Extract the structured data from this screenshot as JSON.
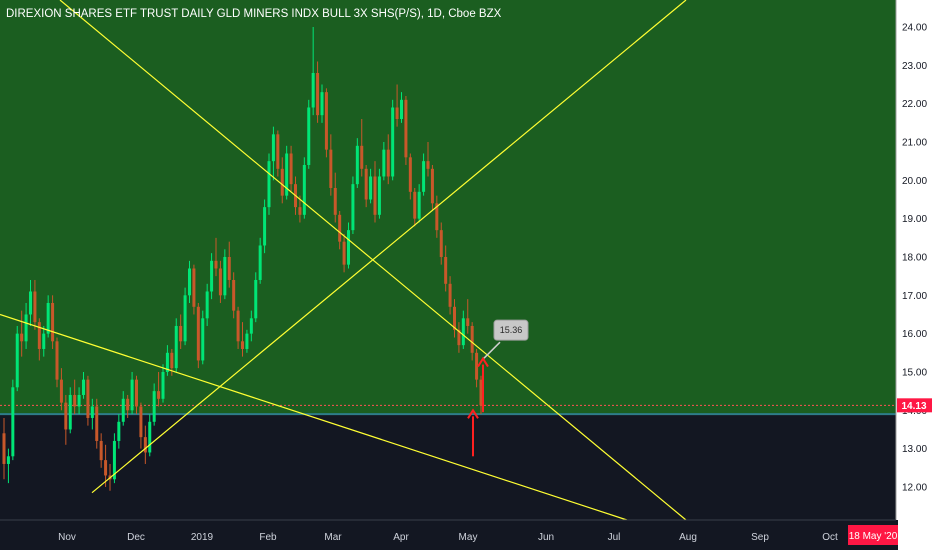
{
  "chart_data": {
    "type": "candlestick",
    "title": "DIREXION SHARES ETF TRUST DAILY GLD MINERS INDX BULL 3X SHS(P/S), 1D, Cboe BZX",
    "xlabel": "",
    "ylabel": "",
    "ylim": [
      11.6,
      24.4
    ],
    "y_ticks": [
      "24.00",
      "23.00",
      "22.00",
      "21.00",
      "20.00",
      "19.00",
      "18.00",
      "17.00",
      "16.00",
      "15.00",
      "14.00",
      "13.00",
      "12.00"
    ],
    "x_ticks": [
      "Nov",
      "Dec",
      "2019",
      "Feb",
      "Mar",
      "Apr",
      "May",
      "Jun",
      "Jul",
      "Aug",
      "Sep",
      "Oct"
    ],
    "last_price_label": "14.13",
    "last_price": 14.13,
    "date_badge": "18 May '20",
    "callout_label": "15.36",
    "callout_value": 15.36,
    "colors": {
      "background_upper": "#1b5e20",
      "background_lower": "#131722",
      "candle_up": "#00e676",
      "candle_down": "#c8582a",
      "trendline": "#ffff33",
      "arrow": "#ff2020",
      "price_badge": "#ff1744",
      "axis_panel": "#ffffff"
    },
    "candles_ohlc": [
      [
        13.4,
        13.8,
        12.2,
        12.6
      ],
      [
        12.6,
        13.0,
        12.1,
        12.8
      ],
      [
        12.8,
        14.8,
        12.7,
        14.6
      ],
      [
        14.6,
        16.2,
        14.5,
        16.0
      ],
      [
        16.0,
        16.6,
        15.4,
        15.8
      ],
      [
        15.8,
        16.8,
        15.6,
        16.5
      ],
      [
        16.5,
        17.4,
        16.2,
        17.1
      ],
      [
        17.1,
        17.4,
        16.1,
        16.3
      ],
      [
        16.3,
        16.4,
        15.3,
        15.6
      ],
      [
        15.6,
        16.2,
        15.4,
        16.0
      ],
      [
        16.0,
        17.0,
        15.9,
        16.8
      ],
      [
        16.8,
        17.0,
        15.6,
        15.8
      ],
      [
        15.8,
        15.9,
        14.6,
        14.8
      ],
      [
        14.8,
        15.1,
        14.0,
        14.2
      ],
      [
        14.2,
        14.4,
        13.1,
        13.5
      ],
      [
        13.5,
        14.6,
        13.4,
        14.4
      ],
      [
        14.4,
        14.8,
        13.9,
        14.1
      ],
      [
        14.1,
        14.6,
        13.9,
        14.4
      ],
      [
        14.4,
        15.0,
        14.3,
        14.8
      ],
      [
        14.8,
        14.9,
        13.6,
        13.8
      ],
      [
        13.8,
        14.3,
        13.5,
        14.1
      ],
      [
        14.1,
        14.3,
        13.0,
        13.2
      ],
      [
        13.2,
        13.4,
        12.5,
        12.7
      ],
      [
        12.7,
        13.1,
        12.0,
        12.3
      ],
      [
        12.3,
        12.6,
        11.9,
        12.2
      ],
      [
        12.2,
        13.4,
        12.1,
        13.2
      ],
      [
        13.2,
        13.9,
        13.0,
        13.7
      ],
      [
        13.7,
        14.5,
        13.6,
        14.3
      ],
      [
        14.3,
        14.4,
        13.8,
        14.0
      ],
      [
        14.0,
        15.0,
        13.9,
        14.8
      ],
      [
        14.8,
        14.9,
        13.9,
        14.1
      ],
      [
        14.1,
        14.2,
        13.0,
        13.3
      ],
      [
        13.3,
        13.6,
        12.6,
        12.9
      ],
      [
        12.9,
        13.9,
        12.8,
        13.7
      ],
      [
        13.7,
        14.7,
        13.6,
        14.5
      ],
      [
        14.5,
        15.0,
        14.1,
        14.3
      ],
      [
        14.3,
        15.2,
        14.2,
        15.0
      ],
      [
        15.0,
        15.7,
        14.9,
        15.5
      ],
      [
        15.5,
        15.6,
        14.9,
        15.1
      ],
      [
        15.1,
        16.4,
        15.0,
        16.2
      ],
      [
        16.2,
        16.5,
        15.6,
        15.8
      ],
      [
        15.8,
        17.2,
        15.7,
        17.0
      ],
      [
        17.0,
        17.9,
        16.8,
        17.7
      ],
      [
        17.7,
        17.8,
        16.5,
        16.7
      ],
      [
        16.7,
        16.8,
        15.1,
        15.3
      ],
      [
        15.3,
        16.6,
        15.2,
        16.4
      ],
      [
        16.4,
        17.3,
        16.2,
        17.1
      ],
      [
        17.1,
        18.1,
        16.9,
        17.9
      ],
      [
        17.9,
        18.5,
        17.5,
        17.7
      ],
      [
        17.7,
        17.9,
        16.8,
        17.0
      ],
      [
        17.0,
        18.2,
        16.9,
        18.0
      ],
      [
        18.0,
        18.4,
        17.2,
        17.4
      ],
      [
        17.4,
        17.6,
        16.4,
        16.6
      ],
      [
        16.6,
        16.7,
        15.6,
        15.8
      ],
      [
        15.8,
        16.3,
        15.4,
        15.6
      ],
      [
        15.6,
        16.1,
        15.5,
        16.0
      ],
      [
        16.0,
        16.6,
        15.8,
        16.4
      ],
      [
        16.4,
        17.6,
        16.3,
        17.4
      ],
      [
        17.4,
        18.5,
        17.3,
        18.3
      ],
      [
        18.3,
        19.5,
        18.1,
        19.3
      ],
      [
        19.3,
        20.7,
        19.1,
        20.5
      ],
      [
        20.5,
        21.4,
        20.0,
        21.2
      ],
      [
        21.2,
        21.3,
        20.1,
        20.3
      ],
      [
        20.3,
        20.6,
        19.4,
        19.6
      ],
      [
        19.6,
        20.9,
        19.5,
        20.7
      ],
      [
        20.7,
        20.9,
        19.7,
        19.9
      ],
      [
        19.9,
        20.1,
        19.1,
        19.3
      ],
      [
        19.3,
        19.6,
        18.9,
        19.1
      ],
      [
        19.1,
        20.6,
        19.0,
        20.4
      ],
      [
        20.4,
        22.1,
        20.3,
        21.9
      ],
      [
        21.9,
        24.0,
        21.7,
        22.8
      ],
      [
        22.8,
        23.1,
        21.5,
        21.7
      ],
      [
        21.7,
        22.5,
        21.5,
        22.3
      ],
      [
        22.3,
        22.4,
        20.6,
        20.8
      ],
      [
        20.8,
        21.2,
        19.6,
        19.8
      ],
      [
        19.8,
        20.2,
        18.9,
        19.1
      ],
      [
        19.1,
        19.2,
        18.2,
        18.4
      ],
      [
        18.4,
        18.6,
        17.6,
        17.8
      ],
      [
        17.8,
        18.9,
        17.7,
        18.7
      ],
      [
        18.7,
        20.1,
        18.6,
        19.9
      ],
      [
        19.9,
        21.1,
        19.8,
        20.9
      ],
      [
        20.9,
        21.6,
        20.1,
        20.3
      ],
      [
        20.3,
        20.4,
        19.3,
        19.5
      ],
      [
        19.5,
        20.3,
        19.4,
        20.1
      ],
      [
        20.1,
        20.5,
        18.9,
        19.1
      ],
      [
        19.1,
        20.3,
        19.0,
        20.1
      ],
      [
        20.1,
        21.0,
        20.0,
        20.8
      ],
      [
        20.8,
        21.2,
        19.9,
        20.1
      ],
      [
        20.1,
        22.1,
        20.0,
        21.9
      ],
      [
        21.9,
        22.5,
        21.4,
        21.6
      ],
      [
        21.6,
        22.3,
        21.5,
        22.1
      ],
      [
        22.1,
        22.2,
        20.4,
        20.6
      ],
      [
        20.6,
        20.7,
        19.5,
        19.7
      ],
      [
        19.7,
        19.8,
        18.8,
        19.0
      ],
      [
        19.0,
        19.9,
        18.9,
        19.7
      ],
      [
        19.7,
        20.7,
        19.6,
        20.5
      ],
      [
        20.5,
        21.0,
        20.1,
        20.3
      ],
      [
        20.3,
        20.4,
        19.2,
        19.4
      ],
      [
        19.4,
        19.6,
        18.5,
        18.7
      ],
      [
        18.7,
        18.9,
        17.8,
        18.0
      ],
      [
        18.0,
        18.3,
        17.1,
        17.3
      ],
      [
        17.3,
        17.5,
        16.5,
        16.7
      ],
      [
        16.7,
        16.9,
        15.9,
        16.1
      ],
      [
        16.1,
        16.3,
        15.5,
        15.7
      ],
      [
        15.7,
        16.6,
        15.6,
        16.4
      ],
      [
        16.4,
        16.9,
        16.0,
        16.2
      ],
      [
        16.2,
        16.3,
        15.3,
        15.5
      ],
      [
        15.5,
        15.6,
        14.6,
        14.8
      ],
      [
        14.8,
        14.9,
        13.9,
        14.13
      ]
    ]
  }
}
